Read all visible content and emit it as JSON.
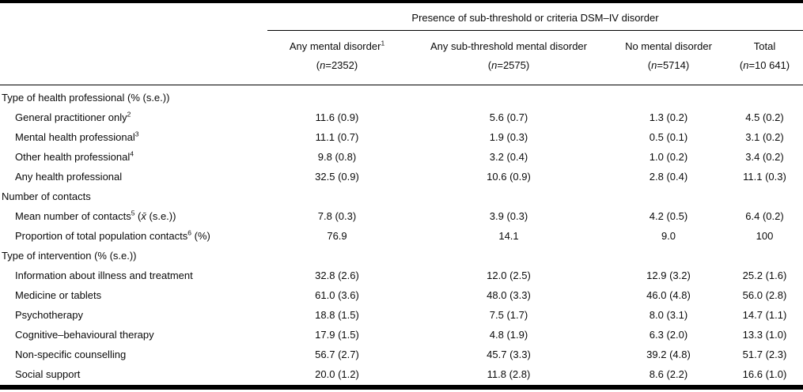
{
  "table": {
    "spanner": "Presence of sub-threshold or criteria DSM–IV disorder",
    "columns": [
      {
        "label": "Any mental disorder",
        "sup": "1",
        "n": "(n=2352)"
      },
      {
        "label": "Any sub-threshold mental disorder",
        "sup": "",
        "n": "(n=2575)"
      },
      {
        "label": "No mental disorder",
        "sup": "",
        "n": "(n=5714)"
      },
      {
        "label": "Total",
        "sup": "",
        "n": "(n=10 641)"
      }
    ],
    "rows": [
      {
        "section": "Type of health professional (% (s.e.))"
      },
      {
        "label": "General practitioner only",
        "sup": "2",
        "suffix": "",
        "values": [
          "11.6 (0.9)",
          "5.6 (0.7)",
          "1.3 (0.2)",
          "4.5 (0.2)"
        ]
      },
      {
        "label": "Mental health professional",
        "sup": "3",
        "suffix": "",
        "values": [
          "11.1 (0.7)",
          "1.9 (0.3)",
          "0.5 (0.1)",
          "3.1 (0.2)"
        ]
      },
      {
        "label": "Other health professional",
        "sup": "4",
        "suffix": "",
        "values": [
          "9.8 (0.8)",
          "3.2 (0.4)",
          "1.0 (0.2)",
          "3.4 (0.2)"
        ]
      },
      {
        "label": "Any health professional",
        "sup": "",
        "suffix": "",
        "values": [
          "32.5 (0.9)",
          "10.6 (0.9)",
          "2.8 (0.4)",
          "11.1 (0.3)"
        ]
      },
      {
        "section": "Number of contacts"
      },
      {
        "label": "Mean number of contacts",
        "sup": "5",
        "suffix": " (x̄ (s.e.))",
        "values": [
          "7.8 (0.3)",
          "3.9 (0.3)",
          "4.2 (0.5)",
          "6.4 (0.2)"
        ]
      },
      {
        "label": "Proportion of total population contacts",
        "sup": "6",
        "suffix": " (%)",
        "values": [
          "76.9",
          "14.1",
          "9.0",
          "100"
        ]
      },
      {
        "section": "Type of intervention (% (s.e.))"
      },
      {
        "label": "Information about illness and treatment",
        "sup": "",
        "suffix": "",
        "values": [
          "32.8 (2.6)",
          "12.0 (2.5)",
          "12.9 (3.2)",
          "25.2 (1.6)"
        ]
      },
      {
        "label": "Medicine or tablets",
        "sup": "",
        "suffix": "",
        "values": [
          "61.0 (3.6)",
          "48.0 (3.3)",
          "46.0 (4.8)",
          "56.0 (2.8)"
        ]
      },
      {
        "label": "Psychotherapy",
        "sup": "",
        "suffix": "",
        "values": [
          "18.8 (1.5)",
          "7.5 (1.7)",
          "8.0 (3.1)",
          "14.7 (1.1)"
        ]
      },
      {
        "label": "Cognitive–behavioural therapy",
        "sup": "",
        "suffix": "",
        "values": [
          "17.9 (1.5)",
          "4.8 (1.9)",
          "6.3 (2.0)",
          "13.3 (1.0)"
        ]
      },
      {
        "label": "Non-specific counselling",
        "sup": "",
        "suffix": "",
        "values": [
          "56.7 (2.7)",
          "45.7 (3.3)",
          "39.2 (4.8)",
          "51.7 (2.3)"
        ]
      },
      {
        "label": "Social support",
        "sup": "",
        "suffix": "",
        "values": [
          "20.0 (1.2)",
          "11.8 (2.8)",
          "8.6 (2.2)",
          "16.6 (1.0)"
        ]
      }
    ],
    "rule_color": "#000000",
    "text_color": "#0a0a0a",
    "background": "#ffffff"
  }
}
